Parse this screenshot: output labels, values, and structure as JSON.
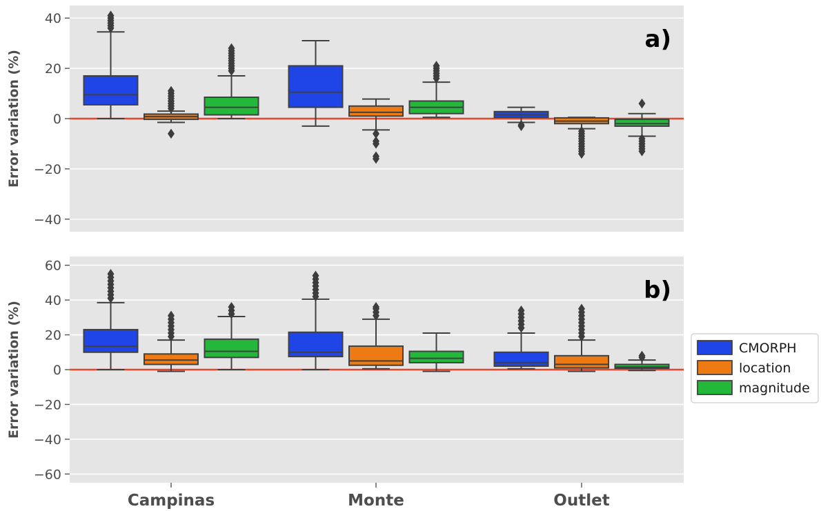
{
  "chart_data": {
    "type": "box",
    "categories": [
      "Campinas",
      "Monte",
      "Outlet"
    ],
    "legend": {
      "placement": "right",
      "entries": [
        {
          "name": "CMORPH",
          "color": "#1f45e6"
        },
        {
          "name": "location",
          "color": "#ee7a14"
        },
        {
          "name": "magnitude",
          "color": "#24b83b"
        }
      ]
    },
    "reference_line": {
      "y": 0,
      "color": "#e8452a"
    },
    "panels": [
      {
        "tag": "a)",
        "ylabel": "Error variation (%)",
        "ylim": [
          -45,
          45
        ],
        "yticks": [
          -40,
          -20,
          0,
          20,
          40
        ],
        "grid": true,
        "series": [
          {
            "name": "CMORPH",
            "boxes": [
              {
                "category": "Campinas",
                "whislo": 0,
                "q1": 5.5,
                "med": 9.5,
                "q3": 17,
                "whishi": 34.5,
                "fliers": [
                  36,
                  37,
                  38,
                  39,
                  40,
                  41
                ]
              },
              {
                "category": "Monte",
                "whislo": -3,
                "q1": 4.5,
                "med": 10.5,
                "q3": 21,
                "whishi": 31,
                "fliers": []
              },
              {
                "category": "Outlet",
                "whislo": -1.5,
                "q1": 0.5,
                "med": 1.5,
                "q3": 2.8,
                "whishi": 4.5,
                "fliers": [
                  -2.5,
                  -3
                ]
              }
            ]
          },
          {
            "name": "location",
            "boxes": [
              {
                "category": "Campinas",
                "whislo": -1.5,
                "q1": -0.3,
                "med": 0.8,
                "q3": 1.8,
                "whishi": 3,
                "fliers": [
                  4,
                  5,
                  6,
                  7,
                  8,
                  9,
                  10,
                  11,
                  -6
                ]
              },
              {
                "category": "Monte",
                "whislo": -4.5,
                "q1": 1,
                "med": 2.5,
                "q3": 5,
                "whishi": 7.8,
                "fliers": [
                  -6,
                  -9,
                  -10,
                  -15,
                  -16
                ]
              },
              {
                "category": "Outlet",
                "whislo": -4,
                "q1": -2,
                "med": -1,
                "q3": 0.3,
                "whishi": 0.5,
                "fliers": [
                  -5,
                  -6,
                  -7,
                  -8,
                  -9,
                  -10,
                  -11,
                  -12,
                  -13,
                  -14
                ]
              }
            ]
          },
          {
            "name": "magnitude",
            "boxes": [
              {
                "category": "Campinas",
                "whislo": 0,
                "q1": 1.5,
                "med": 4.5,
                "q3": 8.5,
                "whishi": 17,
                "fliers": [
                  19,
                  20,
                  21,
                  22,
                  23,
                  24,
                  25,
                  26,
                  27,
                  28
                ]
              },
              {
                "category": "Monte",
                "whislo": 0.5,
                "q1": 2,
                "med": 4.5,
                "q3": 7,
                "whishi": 14.5,
                "fliers": [
                  16,
                  17,
                  18,
                  19,
                  20,
                  21
                ]
              },
              {
                "category": "Outlet",
                "whislo": -7,
                "q1": -3,
                "med": -2,
                "q3": -0.3,
                "whishi": 2,
                "fliers": [
                  6,
                  -8,
                  -9,
                  -10,
                  -11,
                  -12,
                  -13
                ]
              }
            ]
          }
        ]
      },
      {
        "tag": "b)",
        "ylabel": "Error variation (%)",
        "ylim": [
          -65,
          65
        ],
        "yticks": [
          -60,
          -40,
          -20,
          0,
          20,
          40,
          60
        ],
        "grid": true,
        "series": [
          {
            "name": "CMORPH",
            "boxes": [
              {
                "category": "Campinas",
                "whislo": 0,
                "q1": 10,
                "med": 13.5,
                "q3": 23,
                "whishi": 38.5,
                "fliers": [
                  41,
                  43,
                  45,
                  47,
                  49,
                  51,
                  53,
                  55
                ]
              },
              {
                "category": "Monte",
                "whislo": 0,
                "q1": 7.5,
                "med": 10,
                "q3": 21.5,
                "whishi": 40.5,
                "fliers": [
                  42,
                  44,
                  46,
                  48,
                  50,
                  52,
                  54
                ]
              },
              {
                "category": "Outlet",
                "whislo": 0.5,
                "q1": 2,
                "med": 4,
                "q3": 10,
                "whishi": 21,
                "fliers": [
                  24,
                  26,
                  28,
                  30,
                  32,
                  34
                ]
              }
            ]
          },
          {
            "name": "location",
            "boxes": [
              {
                "category": "Campinas",
                "whislo": -1,
                "q1": 3,
                "med": 5.5,
                "q3": 9,
                "whishi": 17,
                "fliers": [
                  19,
                  21,
                  23,
                  25,
                  27,
                  29,
                  31
                ]
              },
              {
                "category": "Monte",
                "whislo": 0.5,
                "q1": 2.5,
                "med": 5,
                "q3": 13.5,
                "whishi": 29,
                "fliers": [
                  31,
                  33,
                  35,
                  36
                ]
              },
              {
                "category": "Outlet",
                "whislo": -1,
                "q1": 1,
                "med": 3,
                "q3": 8,
                "whishi": 17,
                "fliers": [
                  19,
                  21,
                  23,
                  25,
                  27,
                  29,
                  31,
                  33,
                  35
                ]
              }
            ]
          },
          {
            "name": "magnitude",
            "boxes": [
              {
                "category": "Campinas",
                "whislo": 0,
                "q1": 7,
                "med": 10.5,
                "q3": 17.5,
                "whishi": 30.5,
                "fliers": [
                  32,
                  34,
                  36
                ]
              },
              {
                "category": "Monte",
                "whislo": -1,
                "q1": 4,
                "med": 6.5,
                "q3": 10.5,
                "whishi": 21,
                "fliers": []
              },
              {
                "category": "Outlet",
                "whislo": -0.5,
                "q1": 0.8,
                "med": 1.5,
                "q3": 3,
                "whishi": 5.5,
                "fliers": [
                  7,
                  8
                ]
              }
            ]
          }
        ]
      }
    ]
  }
}
